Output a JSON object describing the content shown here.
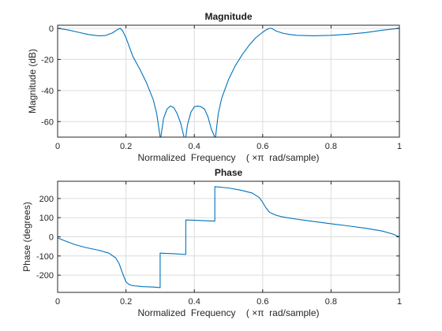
{
  "colors": {
    "series": "#0072BD",
    "axes": "#262626",
    "grid": "#dcdcdc",
    "background": "#ffffff"
  },
  "chart_data": [
    {
      "type": "line",
      "title": "Magnitude",
      "xlabel": "Normalized  Frequency    ( ×π  rad/sample)",
      "ylabel": "Magnitude (dB)",
      "xlim": [
        0,
        1
      ],
      "ylim": [
        -70,
        2
      ],
      "xticks": [
        0,
        0.2,
        0.4,
        0.6,
        0.8,
        1
      ],
      "xtick_labels": [
        "0",
        "0.2",
        "0.4",
        "0.6",
        "0.8",
        "1"
      ],
      "yticks": [
        0,
        -20,
        -40,
        -60
      ],
      "ytick_labels": [
        "0",
        "-20",
        "-40",
        "-60"
      ],
      "grid": true,
      "series": [
        {
          "x": [
            0,
            0.03,
            0.06,
            0.09,
            0.12,
            0.14,
            0.16,
            0.175,
            0.183,
            0.19,
            0.2,
            0.21,
            0.22,
            0.24,
            0.26,
            0.28,
            0.29,
            0.3,
            0.302,
            0.31,
            0.32,
            0.33,
            0.34,
            0.35,
            0.36,
            0.37,
            0.375,
            0.38,
            0.39,
            0.4,
            0.41,
            0.42,
            0.43,
            0.44,
            0.45,
            0.46,
            0.462,
            0.47,
            0.48,
            0.5,
            0.52,
            0.54,
            0.56,
            0.58,
            0.6,
            0.61,
            0.62,
            0.625,
            0.63,
            0.64,
            0.66,
            0.68,
            0.7,
            0.75,
            0.8,
            0.85,
            0.9,
            0.95,
            1.0
          ],
          "y": [
            0,
            -1,
            -2.5,
            -4,
            -4.8,
            -4.6,
            -3,
            -0.8,
            0,
            -1.5,
            -6,
            -12,
            -18,
            -26,
            -35,
            -46,
            -55,
            -70,
            -70,
            -58,
            -52,
            -50,
            -51,
            -55,
            -61,
            -70,
            -70,
            -62,
            -54,
            -50.5,
            -50,
            -50.5,
            -52,
            -57,
            -65,
            -70,
            -70,
            -55,
            -45,
            -33,
            -24,
            -17,
            -11,
            -6,
            -2.5,
            -1,
            0,
            0,
            -0.5,
            -1.8,
            -3.2,
            -4,
            -4.5,
            -4.8,
            -4.5,
            -3.8,
            -2.8,
            -1.2,
            0
          ]
        }
      ]
    },
    {
      "type": "line",
      "title": "Phase",
      "xlabel": "Normalized  Frequency    ( ×π  rad/sample)",
      "ylabel": "Phase (degrees)",
      "xlim": [
        0,
        1
      ],
      "ylim": [
        -290,
        290
      ],
      "xticks": [
        0,
        0.2,
        0.4,
        0.6,
        0.8,
        1
      ],
      "xtick_labels": [
        "0",
        "0.2",
        "0.4",
        "0.6",
        "0.8",
        "1"
      ],
      "yticks": [
        200,
        100,
        0,
        -100,
        -200
      ],
      "ytick_labels": [
        "200",
        "100",
        "0",
        "-100",
        "-200"
      ],
      "grid": true,
      "series": [
        {
          "x": [
            0,
            0.02,
            0.05,
            0.08,
            0.12,
            0.15,
            0.17,
            0.18,
            0.19,
            0.2,
            0.21,
            0.22,
            0.25,
            0.28,
            0.3,
            0.3,
            0.34,
            0.375,
            0.375,
            0.42,
            0.46,
            0.46,
            0.5,
            0.54,
            0.57,
            0.59,
            0.6,
            0.61,
            0.62,
            0.64,
            0.66,
            0.7,
            0.75,
            0.8,
            0.85,
            0.9,
            0.95,
            0.98,
            1.0
          ],
          "y": [
            -5,
            -20,
            -40,
            -55,
            -70,
            -85,
            -110,
            -140,
            -190,
            -235,
            -250,
            -255,
            -260,
            -262,
            -265,
            -85,
            -88,
            -92,
            88,
            85,
            82,
            262,
            255,
            242,
            228,
            205,
            180,
            150,
            128,
            112,
            103,
            92,
            80,
            68,
            57,
            45,
            30,
            15,
            0
          ]
        }
      ]
    }
  ]
}
